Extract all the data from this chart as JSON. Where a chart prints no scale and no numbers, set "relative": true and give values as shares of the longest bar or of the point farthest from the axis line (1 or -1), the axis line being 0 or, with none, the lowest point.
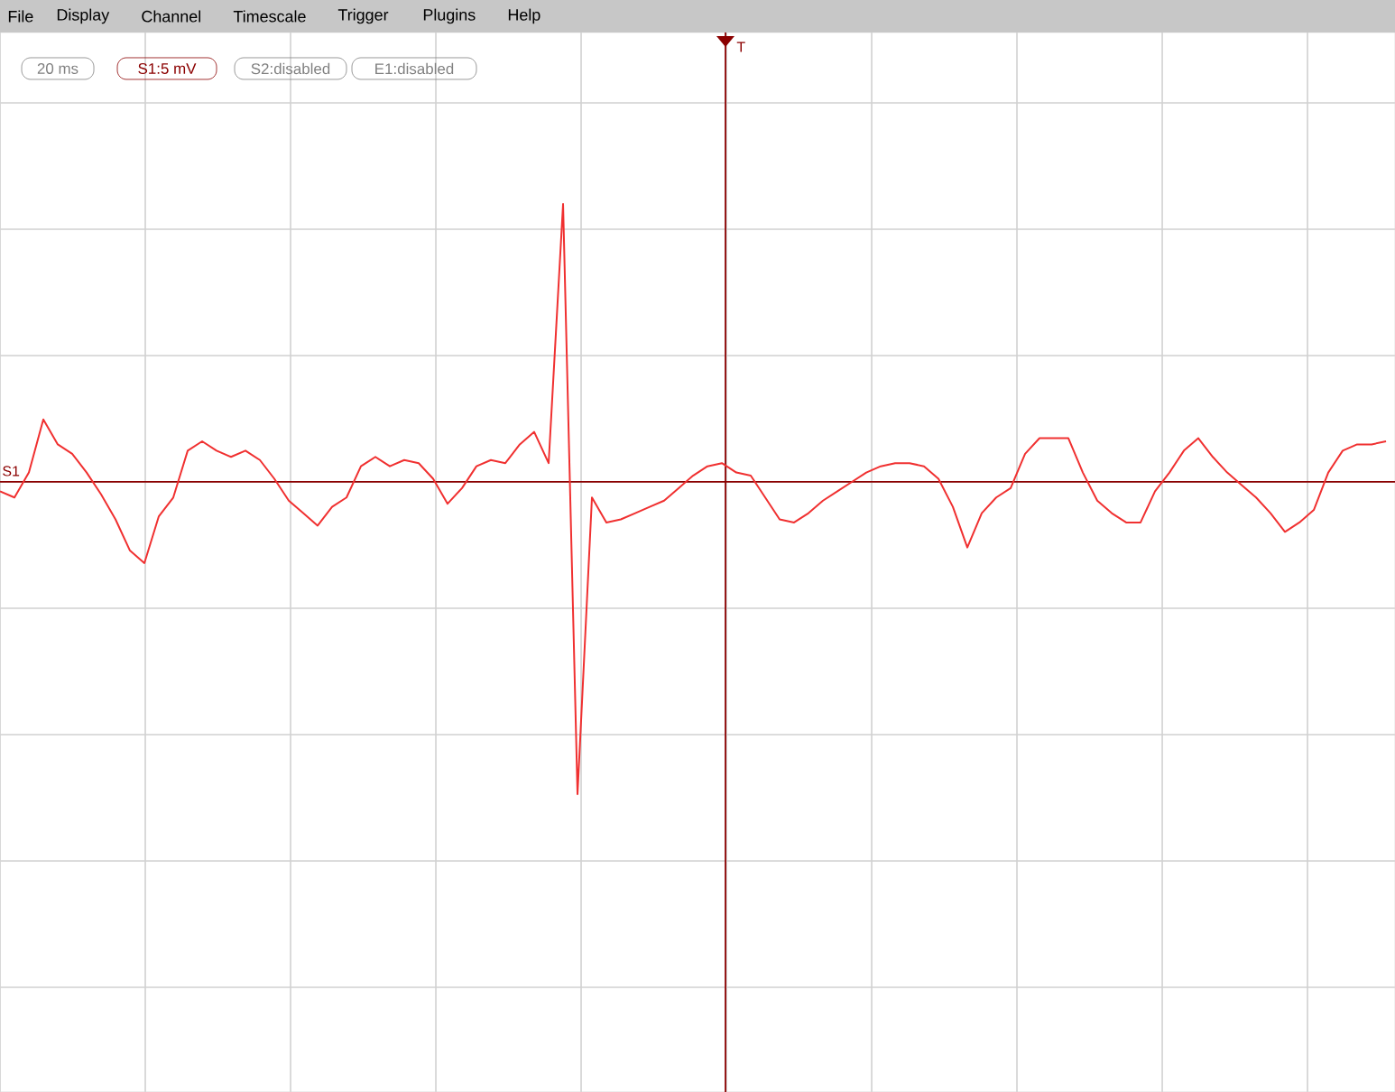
{
  "chart_data": {
    "type": "line",
    "relative": true,
    "color": "#f03030",
    "grid": true,
    "marker": "none",
    "ref_lines": [
      {
        "axis": "y",
        "value": 0,
        "color": "#8b0000"
      }
    ],
    "categories": [
      null,
      null,
      null,
      null,
      null,
      null,
      null,
      null,
      null,
      null,
      null,
      null,
      null,
      null,
      null,
      null,
      null,
      null,
      null,
      null,
      null,
      null,
      null,
      null,
      null,
      null,
      null,
      null,
      null,
      null,
      null,
      null,
      null,
      null,
      null,
      null,
      null,
      null,
      null,
      null,
      null,
      null,
      null,
      null,
      null,
      null,
      null,
      null,
      null,
      null,
      null,
      null,
      null,
      null,
      null,
      null,
      null,
      null,
      null,
      null,
      null,
      null,
      null,
      null,
      null,
      null,
      null,
      null,
      null,
      null,
      null,
      null,
      null,
      null,
      null,
      null,
      null,
      null,
      null,
      null,
      null,
      null,
      null,
      null,
      null,
      null,
      null,
      null,
      null,
      null,
      null,
      null,
      null,
      null,
      null,
      null,
      null
    ],
    "values": [
      -0.03,
      -0.05,
      0.03,
      0.2,
      0.12,
      0.09,
      0.03,
      -0.04,
      -0.12,
      -0.22,
      -0.26,
      -0.11,
      -0.05,
      0.1,
      0.13,
      0.1,
      0.08,
      0.1,
      0.07,
      0.01,
      -0.06,
      -0.1,
      -0.14,
      -0.08,
      -0.05,
      0.05,
      0.08,
      0.05,
      0.07,
      0.06,
      0.01,
      -0.07,
      -0.02,
      0.05,
      0.07,
      0.06,
      0.12,
      0.16,
      0.06,
      0.89,
      -1,
      -0.05,
      -0.13,
      -0.12,
      -0.1,
      -0.08,
      -0.06,
      -0.02,
      0.02,
      0.05,
      0.06,
      0.03,
      0.02,
      -0.05,
      -0.12,
      -0.13,
      -0.1,
      -0.06,
      -0.03,
      0,
      0.03,
      0.05,
      0.06,
      0.06,
      0.05,
      0.01,
      -0.08,
      -0.21,
      -0.1,
      -0.05,
      -0.02,
      0.09,
      0.14,
      0.14,
      0.14,
      0.03,
      -0.06,
      -0.1,
      -0.13,
      -0.13,
      -0.03,
      0.03,
      0.1,
      0.14,
      0.08,
      0.03,
      -0.01,
      -0.05,
      -0.1,
      -0.16,
      -0.13,
      -0.09,
      0.03,
      0.1,
      0.12,
      0.12,
      0.13
    ],
    "annotations": [
      "File",
      "Display",
      "Channel",
      "Timescale",
      "Trigger",
      "Plugins",
      "Help",
      "20 ms",
      "S1:5 mV",
      "S2:disabled",
      "E1:disabled",
      "T",
      "S1"
    ]
  }
}
